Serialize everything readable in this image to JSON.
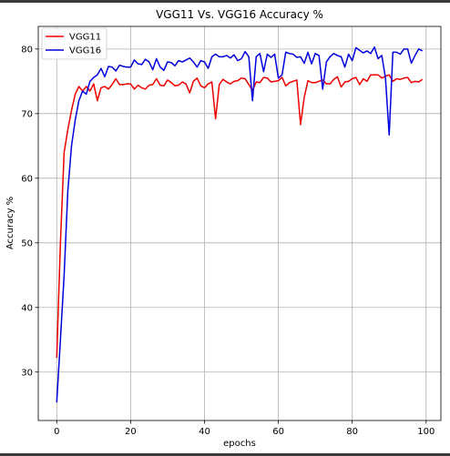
{
  "chart_data": {
    "type": "line",
    "title": "VGG11 Vs. VGG16 Accuracy %",
    "xlabel": "epochs",
    "ylabel": "Accuracy %",
    "xlim": [
      -5,
      104
    ],
    "ylim": [
      22.5,
      83.5
    ],
    "xticks": [
      0,
      20,
      40,
      60,
      80,
      100
    ],
    "yticks": [
      30,
      40,
      50,
      60,
      70,
      80
    ],
    "grid": true,
    "legend_position": "top-left",
    "colors": {
      "VGG11": "#ee0000",
      "VGG16": "#0000dd"
    },
    "series": [
      {
        "name": "VGG11",
        "x": [
          0,
          1,
          2,
          3,
          4,
          5,
          6,
          7,
          8,
          9,
          10,
          11,
          12,
          13,
          14,
          15,
          16,
          17,
          18,
          19,
          20,
          21,
          22,
          23,
          24,
          25,
          26,
          27,
          28,
          29,
          30,
          31,
          32,
          33,
          34,
          35,
          36,
          37,
          38,
          39,
          40,
          41,
          42,
          43,
          44,
          45,
          46,
          47,
          48,
          49,
          50,
          51,
          52,
          53,
          54,
          55,
          56,
          57,
          58,
          59,
          60,
          61,
          62,
          63,
          64,
          65,
          66,
          67,
          68,
          69,
          70,
          71,
          72,
          73,
          74,
          75,
          76,
          77,
          78,
          79,
          80,
          81,
          82,
          83,
          84,
          85,
          86,
          87,
          88,
          89,
          90,
          91,
          92,
          93,
          94,
          95,
          96,
          97,
          98,
          99
        ],
        "values": [
          32.2,
          50.0,
          64.0,
          67.5,
          70.5,
          73.0,
          74.2,
          73.5,
          74.2,
          73.5,
          74.6,
          72.0,
          74.0,
          74.2,
          73.8,
          74.5,
          75.4,
          74.5,
          74.5,
          74.6,
          74.6,
          73.8,
          74.4,
          74.0,
          73.8,
          74.4,
          74.5,
          75.4,
          74.4,
          74.3,
          75.2,
          74.8,
          74.3,
          74.4,
          74.9,
          74.6,
          73.2,
          75.0,
          75.5,
          74.3,
          74.0,
          74.6,
          74.9,
          69.2,
          74.5,
          75.3,
          74.9,
          74.6,
          75.0,
          75.1,
          75.5,
          75.4,
          74.5,
          73.6,
          74.9,
          74.8,
          75.6,
          75.5,
          74.9,
          75.0,
          75.1,
          75.6,
          74.3,
          74.8,
          75.0,
          75.2,
          68.3,
          72.5,
          75.1,
          74.8,
          74.8,
          75.0,
          75.2,
          74.6,
          74.6,
          75.3,
          75.7,
          74.1,
          74.9,
          75.0,
          75.4,
          75.6,
          74.5,
          75.4,
          75.0,
          76.0,
          76.0,
          76.0,
          75.5,
          75.8,
          76.0,
          75.0,
          75.4,
          75.3,
          75.5,
          75.6,
          74.8,
          75.0,
          74.9,
          75.3
        ]
      },
      {
        "name": "VGG16",
        "x": [
          0,
          1,
          2,
          3,
          4,
          5,
          6,
          7,
          8,
          9,
          10,
          11,
          12,
          13,
          14,
          15,
          16,
          17,
          18,
          19,
          20,
          21,
          22,
          23,
          24,
          25,
          26,
          27,
          28,
          29,
          30,
          31,
          32,
          33,
          34,
          35,
          36,
          37,
          38,
          39,
          40,
          41,
          42,
          43,
          44,
          45,
          46,
          47,
          48,
          49,
          50,
          51,
          52,
          53,
          54,
          55,
          56,
          57,
          58,
          59,
          60,
          61,
          62,
          63,
          64,
          65,
          66,
          67,
          68,
          69,
          70,
          71,
          72,
          73,
          74,
          75,
          76,
          77,
          78,
          79,
          80,
          81,
          82,
          83,
          84,
          85,
          86,
          87,
          88,
          89,
          90,
          91,
          92,
          93,
          94,
          95,
          96,
          97,
          98,
          99
        ],
        "values": [
          25.3,
          35.0,
          45.0,
          58.0,
          65.0,
          69.0,
          72.0,
          73.5,
          73.0,
          75.0,
          75.6,
          76.0,
          77.0,
          75.7,
          77.3,
          77.2,
          76.6,
          77.5,
          77.3,
          77.2,
          77.2,
          78.3,
          77.7,
          77.6,
          78.4,
          78.0,
          76.8,
          78.5,
          77.2,
          76.7,
          78.0,
          77.9,
          77.4,
          78.2,
          78.0,
          78.3,
          78.6,
          78.0,
          77.2,
          78.2,
          78.0,
          77.0,
          78.8,
          79.2,
          78.8,
          78.8,
          79.0,
          78.6,
          79.1,
          78.2,
          78.5,
          79.6,
          78.8,
          72.0,
          78.8,
          79.3,
          76.5,
          79.2,
          78.7,
          79.2,
          75.5,
          76.0,
          79.5,
          79.3,
          79.2,
          78.7,
          78.8,
          77.8,
          79.5,
          77.7,
          79.3,
          79.0,
          73.8,
          78.0,
          78.8,
          79.3,
          79.0,
          78.8,
          77.2,
          79.2,
          78.2,
          80.2,
          79.8,
          79.4,
          79.7,
          79.3,
          80.3,
          78.5,
          79.0,
          75.5,
          66.7,
          79.5,
          79.5,
          79.2,
          80.0,
          80.0,
          77.8,
          79.0,
          80.0,
          79.7
        ]
      }
    ]
  }
}
